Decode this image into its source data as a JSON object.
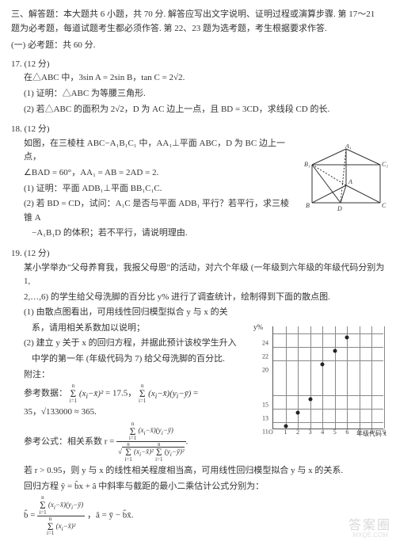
{
  "header": {
    "section_title": "三、解答题：本大题共 6 小题，共 70 分. 解答应写出文字说明、证明过程或演算步骤. 第 17～21 题为必考题，每道试题考生都必须作答. 第 22、23 题为选考题，考生根据要求作答.",
    "compulsory": "(一) 必考题：共 60 分."
  },
  "q17": {
    "num": "17. (12 分)",
    "l1": "在△ABC 中，3sin A = 2sin B，tan C = 2√2.",
    "p1": "(1) 证明：△ABC 为等腰三角形.",
    "p2": "(2) 若△ABC 的面积为 2√2，D 为 AC 边上一点，且 BD = 3CD，求线段 CD 的长."
  },
  "q18": {
    "num": "18. (12 分)",
    "l1": "如图，在三棱柱 ABC−A₁B₁C₁ 中，AA₁⊥平面 ABC，D 为 BC 边上一点，",
    "l2": "∠BAD = 60°，AA₁ = AB = 2AD = 2.",
    "p1": "(1) 证明：平面 ADB₁⊥平面 BB₁C₁C.",
    "p2a": "(2) 若 BD = CD，试问：A₁C 是否与平面 ADB₁ 平行？若平行，求三棱锥 A",
    "p2b": "−A₁B₁D 的体积；若不平行，请说明理由."
  },
  "q19": {
    "num": "19. (12 分)",
    "l1": "某小学举办\"父母养育我，我报父母恩\"的活动，对六个年级 (一年级到六年级的年级代码分别为 1,",
    "l2": "2,…,6) 的学生给父母洗脚的百分比 y% 进行了调查统计，绘制得到下面的散点图.",
    "p1a": "(1) 由散点图看出，可用线性回归模型拟合 y 与 x 的关",
    "p1b": "系，请用相关系数加以说明；",
    "p2a": "(2) 建立 y 关于 x 的回归方程，并据此预计该校学生升入",
    "p2b": "中学的第一年 (年级代码为 7) 给父母洗脚的百分比.",
    "note": "附注：",
    "ref1a": "参考数据：",
    "ref1b": " = 17.5，",
    "ref1c": " =",
    "ref2a": "35，√133000 ≈ 365.",
    "ref3": "参考公式：相关系数 r =",
    "ref4": "若 r > 0.95，则 y 与 x 的线性相关程度相当高，可用线性回归模型拟合 y 与 x 的关系.",
    "ref5": "回归方程 ŷ = b̂x + â 中斜率与截距的最小二乘估计公式分别为：",
    "ref6a": "b̂ =",
    "ref6b": "，â = ȳ − b̂x̄."
  },
  "prism": {
    "labels": {
      "A1": "A₁",
      "B1": "B₁",
      "C1": "C₁",
      "A": "A",
      "B": "B",
      "C": "C",
      "D": "D"
    },
    "stroke": "#333333"
  },
  "chart": {
    "x": [
      1,
      2,
      3,
      4,
      5,
      6
    ],
    "y": [
      11,
      13,
      15,
      20,
      22,
      24
    ],
    "xlim": [
      0,
      9
    ],
    "ylim": [
      10,
      25
    ],
    "xtick_step": 1,
    "yticks": [
      11,
      13,
      15,
      20,
      22,
      24
    ],
    "grid_color": "#888888",
    "dot_color": "#222222",
    "bg": "#ffffff",
    "xlabel": "年级代码 x",
    "ylabel": "y%",
    "tick_fontsize": 8,
    "label_fontsize": 9,
    "origin_label": "O"
  },
  "watermark": {
    "main": "答案圈",
    "sub": "MXQE.COM"
  }
}
